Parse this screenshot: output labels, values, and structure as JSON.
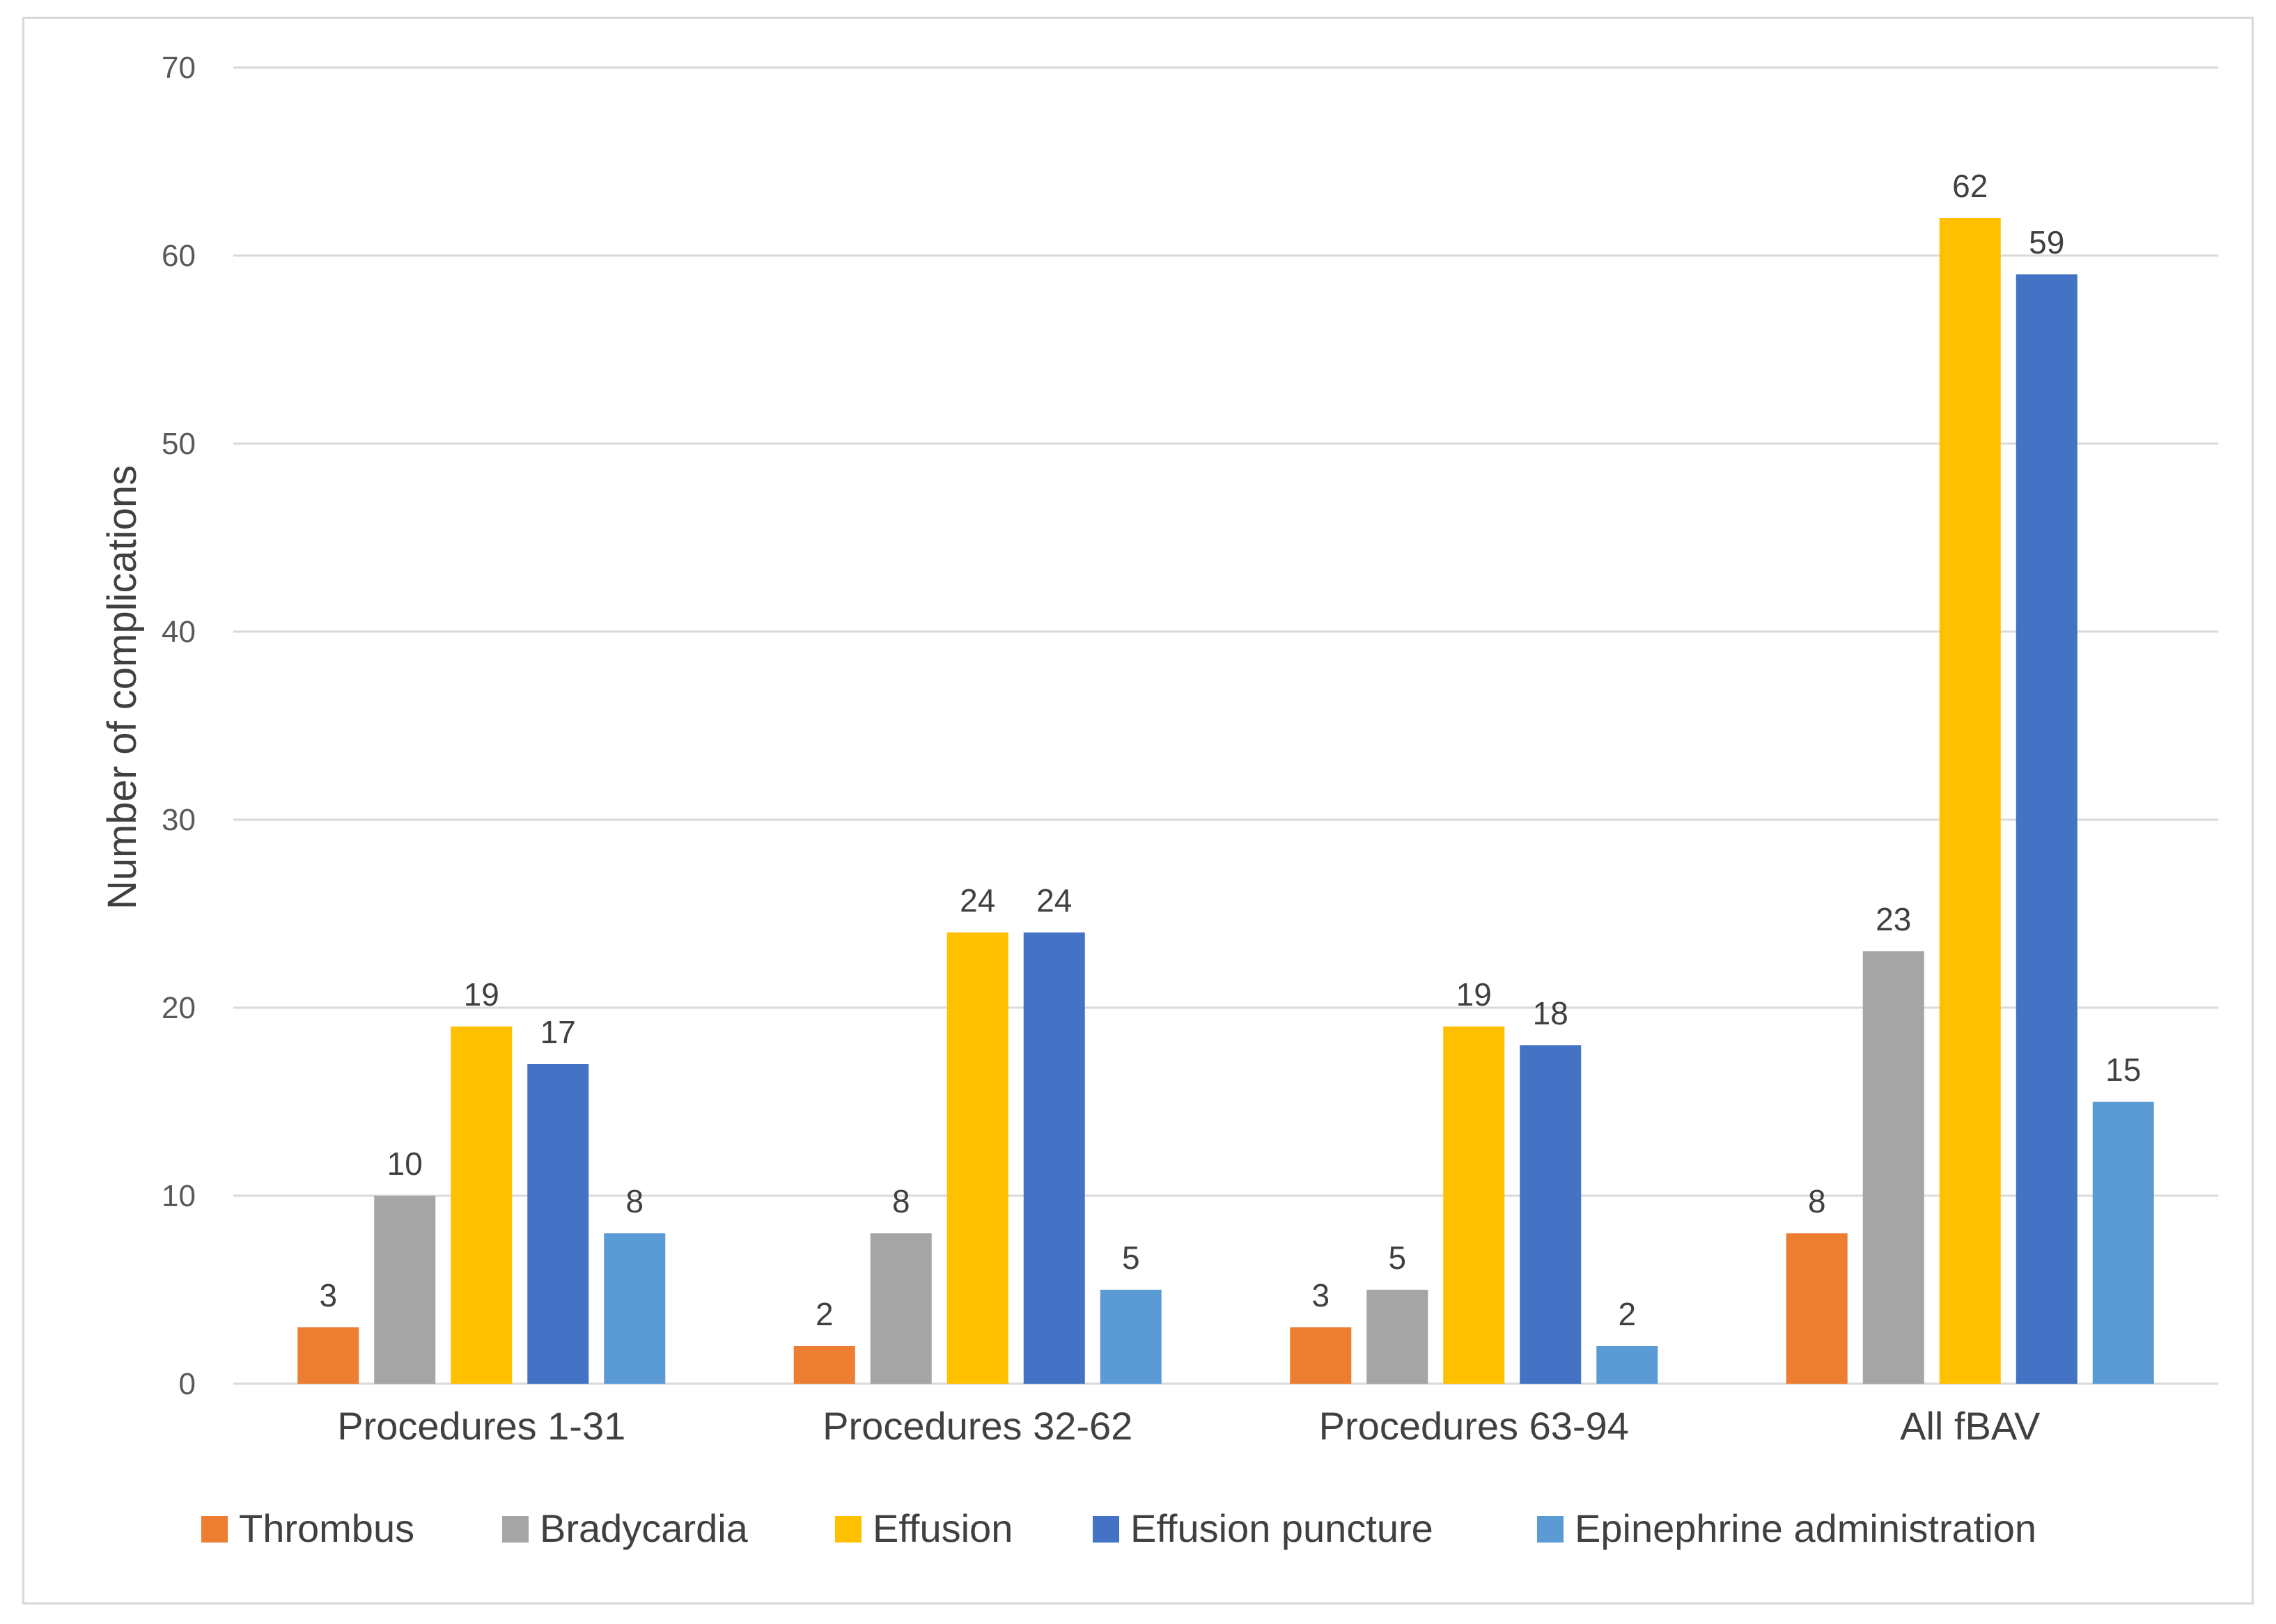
{
  "chart_data": {
    "type": "bar",
    "title": "",
    "xlabel": "",
    "ylabel": "Number of complications",
    "ylim": [
      0,
      70
    ],
    "yticks": [
      0,
      10,
      20,
      30,
      40,
      50,
      60,
      70
    ],
    "grid": true,
    "legend_position": "bottom",
    "categories": [
      "Procedures 1-31",
      "Procedures 32-62",
      "Procedures 63-94",
      "All fBAV"
    ],
    "series": [
      {
        "name": "Thrombus",
        "color": "#ED7D31",
        "values": [
          3,
          2,
          3,
          8
        ]
      },
      {
        "name": "Bradycardia",
        "color": "#A5A5A5",
        "values": [
          10,
          8,
          5,
          23
        ]
      },
      {
        "name": "Effusion",
        "color": "#FFC000",
        "values": [
          19,
          24,
          19,
          62
        ]
      },
      {
        "name": "Effusion puncture",
        "color": "#4472C4",
        "values": [
          17,
          24,
          18,
          59
        ]
      },
      {
        "name": "Epinephrine administration",
        "color": "#5B9BD5",
        "values": [
          8,
          5,
          2,
          15
        ]
      }
    ]
  }
}
